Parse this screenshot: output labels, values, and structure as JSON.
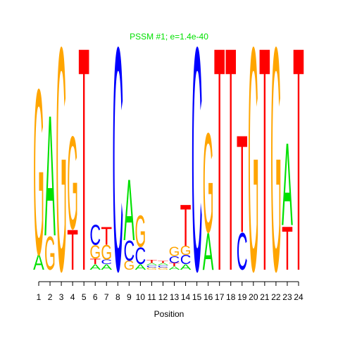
{
  "chart_data": {
    "type": "logo",
    "title": "PSSM #1; e=1.4e-40",
    "xlabel": "Position",
    "categories": [
      1,
      2,
      3,
      4,
      5,
      6,
      7,
      8,
      9,
      10,
      11,
      12,
      13,
      14,
      15,
      16,
      17,
      18,
      19,
      20,
      21,
      22,
      23,
      24
    ],
    "ylim": [
      0,
      2
    ],
    "colors": {
      "A": "#00e000",
      "C": "#0000ff",
      "G": "#ffa500",
      "T": "#ff0000"
    },
    "title_color": "#00e000",
    "stacks": [
      [
        {
          "letter": "A",
          "value": 0.14
        },
        {
          "letter": "G",
          "value": 1.48
        }
      ],
      [
        {
          "letter": "G",
          "value": 0.3
        },
        {
          "letter": "A",
          "value": 1.08
        }
      ],
      [
        {
          "letter": "G",
          "value": 2.0
        }
      ],
      [
        {
          "letter": "T",
          "value": 0.36
        },
        {
          "letter": "G",
          "value": 0.83
        }
      ],
      [
        {
          "letter": "T",
          "value": 2.0
        }
      ],
      [
        {
          "letter": "A",
          "value": 0.05
        },
        {
          "letter": "T",
          "value": 0.05
        },
        {
          "letter": "G",
          "value": 0.12
        },
        {
          "letter": "C",
          "value": 0.18
        }
      ],
      [
        {
          "letter": "A",
          "value": 0.05
        },
        {
          "letter": "C",
          "value": 0.04
        },
        {
          "letter": "G",
          "value": 0.13
        },
        {
          "letter": "T",
          "value": 0.16
        }
      ],
      [
        {
          "letter": "C",
          "value": 2.0
        }
      ],
      [
        {
          "letter": "G",
          "value": 0.08
        },
        {
          "letter": "C",
          "value": 0.18
        },
        {
          "letter": "A",
          "value": 0.55
        }
      ],
      [
        {
          "letter": "A",
          "value": 0.05
        },
        {
          "letter": "C",
          "value": 0.15
        },
        {
          "letter": "G",
          "value": 0.28
        }
      ],
      [
        {
          "letter": "G",
          "value": 0.02
        },
        {
          "letter": "C",
          "value": 0.02
        },
        {
          "letter": "A",
          "value": 0.02
        },
        {
          "letter": "T",
          "value": 0.03
        }
      ],
      [
        {
          "letter": "G",
          "value": 0.02
        },
        {
          "letter": "C",
          "value": 0.02
        },
        {
          "letter": "A",
          "value": 0.02
        },
        {
          "letter": "T",
          "value": 0.02
        }
      ],
      [
        {
          "letter": "A",
          "value": 0.03
        },
        {
          "letter": "T",
          "value": 0.03
        },
        {
          "letter": "C",
          "value": 0.06
        },
        {
          "letter": "G",
          "value": 0.08
        }
      ],
      [
        {
          "letter": "A",
          "value": 0.05
        },
        {
          "letter": "C",
          "value": 0.08
        },
        {
          "letter": "G",
          "value": 0.08
        },
        {
          "letter": "T",
          "value": 0.37
        }
      ],
      [
        {
          "letter": "C",
          "value": 2.0
        }
      ],
      [
        {
          "letter": "A",
          "value": 0.33
        },
        {
          "letter": "G",
          "value": 0.89
        }
      ],
      [
        {
          "letter": "T",
          "value": 2.0
        }
      ],
      [
        {
          "letter": "T",
          "value": 2.0
        }
      ],
      [
        {
          "letter": "C",
          "value": 0.33
        },
        {
          "letter": "T",
          "value": 0.87
        }
      ],
      [
        {
          "letter": "G",
          "value": 2.0
        }
      ],
      [
        {
          "letter": "T",
          "value": 2.0
        }
      ],
      [
        {
          "letter": "G",
          "value": 2.0
        }
      ],
      [
        {
          "letter": "T",
          "value": 0.39
        },
        {
          "letter": "A",
          "value": 0.74
        }
      ],
      [
        {
          "letter": "T",
          "value": 2.0
        }
      ]
    ]
  }
}
